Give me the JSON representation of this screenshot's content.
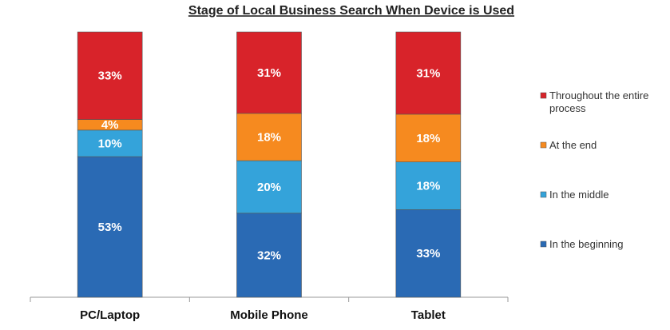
{
  "chart_data": {
    "type": "stacked_bar",
    "title": "Stage of Local Business Search When Device is Used",
    "categories": [
      "PC/Laptop",
      "Mobile Phone",
      "Tablet"
    ],
    "series": [
      {
        "name": "In the beginning",
        "color": "#2a6ab4",
        "values": [
          53,
          32,
          33
        ],
        "value_labels": [
          "53%",
          "32%",
          "33%"
        ]
      },
      {
        "name": "In the middle",
        "color": "#34a3da",
        "values": [
          10,
          20,
          18
        ],
        "value_labels": [
          "10%",
          "20%",
          "18%"
        ]
      },
      {
        "name": "At the end",
        "color": "#f68a1f",
        "values": [
          4,
          18,
          18
        ],
        "value_labels": [
          "4%",
          "18%",
          "18%"
        ]
      },
      {
        "name": "Throughout the entire process",
        "color": "#d8232a",
        "values": [
          33,
          31,
          31
        ],
        "value_labels": [
          "33%",
          "31%",
          "31%"
        ]
      }
    ]
  }
}
